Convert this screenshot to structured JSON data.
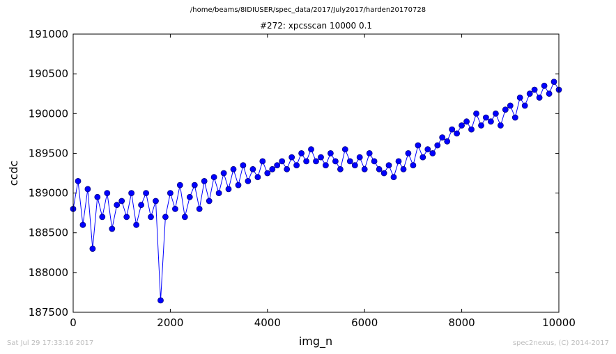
{
  "header": {
    "path": "/home/beams/8IDIUSER/spec_data/2017/July2017/harden20170728"
  },
  "footer": {
    "date": "Sat Jul 29 17:33:16 2017",
    "credit": "spec2nexus, (C) 2014-2017"
  },
  "colors": {
    "series": "#0000ff",
    "marker_edge": "#000080",
    "footer_text": "#bdbdbd"
  },
  "chart_data": {
    "type": "line",
    "title": "#272: xpcsscan 10000 0.1",
    "xlabel": "img_n",
    "ylabel": "ccdc",
    "xlim": [
      0,
      10000
    ],
    "ylim": [
      187500,
      191000
    ],
    "xticks": [
      0,
      2000,
      4000,
      6000,
      8000,
      10000
    ],
    "yticks": [
      187500,
      188000,
      188500,
      189000,
      189500,
      190000,
      190500,
      191000
    ],
    "marker": "circle",
    "grid": false,
    "series": [
      {
        "x": [
          0,
          100,
          200,
          300,
          400,
          500,
          600,
          700,
          800,
          900,
          1000,
          1100,
          1200,
          1300,
          1400,
          1500,
          1600,
          1700,
          1800,
          1900,
          2000,
          2100,
          2200,
          2300,
          2400,
          2500,
          2600,
          2700,
          2800,
          2900,
          3000,
          3100,
          3200,
          3300,
          3400,
          3500,
          3600,
          3700,
          3800,
          3900,
          4000,
          4100,
          4200,
          4300,
          4400,
          4500,
          4600,
          4700,
          4800,
          4900,
          5000,
          5100,
          5200,
          5300,
          5400,
          5500,
          5600,
          5700,
          5800,
          5900,
          6000,
          6100,
          6200,
          6300,
          6400,
          6500,
          6600,
          6700,
          6800,
          6900,
          7000,
          7100,
          7200,
          7300,
          7400,
          7500,
          7600,
          7700,
          7800,
          7900,
          8000,
          8100,
          8200,
          8300,
          8400,
          8500,
          8600,
          8700,
          8800,
          8900,
          9000,
          9100,
          9200,
          9300,
          9400,
          9500,
          9600,
          9700,
          9800,
          9900,
          10000
        ],
        "values": [
          188800,
          189150,
          188600,
          189050,
          188300,
          188950,
          188700,
          189000,
          188550,
          188850,
          188900,
          188700,
          189000,
          188600,
          188850,
          189000,
          188700,
          188900,
          187650,
          188700,
          189000,
          188800,
          189100,
          188700,
          188950,
          189100,
          188800,
          189150,
          188900,
          189200,
          189000,
          189250,
          189050,
          189300,
          189100,
          189350,
          189150,
          189300,
          189200,
          189400,
          189250,
          189300,
          189350,
          189400,
          189300,
          189450,
          189350,
          189500,
          189400,
          189550,
          189400,
          189450,
          189350,
          189500,
          189400,
          189300,
          189550,
          189400,
          189350,
          189450,
          189300,
          189500,
          189400,
          189300,
          189250,
          189350,
          189200,
          189400,
          189300,
          189500,
          189350,
          189600,
          189450,
          189550,
          189500,
          189600,
          189700,
          189650,
          189800,
          189750,
          189850,
          189900,
          189800,
          190000,
          189850,
          189950,
          189900,
          190000,
          189850,
          190050,
          190100,
          189950,
          190200,
          190100,
          190250,
          190300,
          190200,
          190350,
          190250,
          190400,
          190300
        ]
      }
    ]
  }
}
